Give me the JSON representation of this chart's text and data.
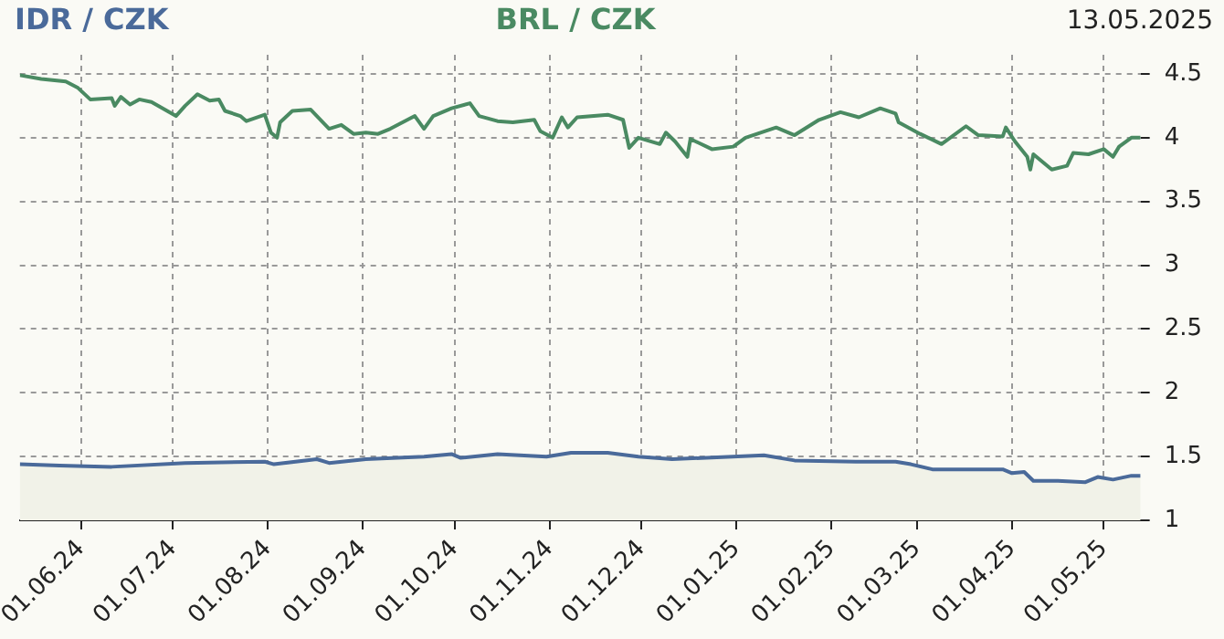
{
  "chart_data": {
    "type": "line",
    "annotations": [
      "13.05.2025"
    ],
    "xlim": [
      "2024-05-12",
      "2025-05-13"
    ],
    "xticks": [
      {
        "value": "2024-06-01",
        "label": "01.06.24"
      },
      {
        "value": "2024-07-01",
        "label": "01.07.24"
      },
      {
        "value": "2024-08-01",
        "label": "01.08.24"
      },
      {
        "value": "2024-09-01",
        "label": "01.09.24"
      },
      {
        "value": "2024-10-01",
        "label": "01.10.24"
      },
      {
        "value": "2024-11-01",
        "label": "01.11.24"
      },
      {
        "value": "2024-12-01",
        "label": "01.12.24"
      },
      {
        "value": "2025-01-01",
        "label": "01.01.25"
      },
      {
        "value": "2025-02-01",
        "label": "01.02.25"
      },
      {
        "value": "2025-03-01",
        "label": "01.03.25"
      },
      {
        "value": "2025-04-01",
        "label": "01.04.25"
      },
      {
        "value": "2025-05-01",
        "label": "01.05.25"
      }
    ],
    "ylim": [
      1,
      4.65
    ],
    "yticks": [
      1,
      1.5,
      2,
      2.5,
      3,
      3.5,
      4,
      4.5
    ],
    "grid": true,
    "series": [
      {
        "name": "IDR / CZK",
        "type": "area",
        "color": "#4a6a9a",
        "x": [
          "2024-05-12",
          "2024-05-25",
          "2024-06-11",
          "2024-07-05",
          "2024-07-31",
          "2024-08-03",
          "2024-08-17",
          "2024-08-21",
          "2024-09-02",
          "2024-09-21",
          "2024-09-30",
          "2024-10-03",
          "2024-10-15",
          "2024-10-31",
          "2024-11-08",
          "2024-11-20",
          "2024-11-30",
          "2024-12-11",
          "2025-01-10",
          "2025-01-20",
          "2025-02-09",
          "2025-02-22",
          "2025-02-27",
          "2025-03-06",
          "2025-03-29",
          "2025-04-01",
          "2025-04-05",
          "2025-04-08",
          "2025-04-16",
          "2025-04-25",
          "2025-04-29",
          "2025-05-04",
          "2025-05-10",
          "2025-05-13"
        ],
        "values": [
          1.44,
          1.43,
          1.42,
          1.45,
          1.46,
          1.44,
          1.48,
          1.45,
          1.48,
          1.5,
          1.52,
          1.49,
          1.52,
          1.5,
          1.53,
          1.53,
          1.5,
          1.48,
          1.51,
          1.47,
          1.46,
          1.46,
          1.44,
          1.4,
          1.4,
          1.37,
          1.38,
          1.31,
          1.31,
          1.3,
          1.34,
          1.32,
          1.35,
          1.35
        ]
      },
      {
        "name": "BRL / CZK",
        "type": "line",
        "color": "#4a8a62",
        "x": [
          "2024-05-12",
          "2024-05-19",
          "2024-05-27",
          "2024-05-31",
          "2024-06-04",
          "2024-06-11",
          "2024-06-12",
          "2024-06-14",
          "2024-06-17",
          "2024-06-20",
          "2024-06-24",
          "2024-07-02",
          "2024-07-05",
          "2024-07-09",
          "2024-07-13",
          "2024-07-16",
          "2024-07-18",
          "2024-07-23",
          "2024-07-25",
          "2024-07-31",
          "2024-08-02",
          "2024-08-04",
          "2024-08-05",
          "2024-08-09",
          "2024-08-15",
          "2024-08-21",
          "2024-08-25",
          "2024-08-29",
          "2024-09-02",
          "2024-09-06",
          "2024-09-10",
          "2024-09-18",
          "2024-09-21",
          "2024-09-24",
          "2024-09-30",
          "2024-10-06",
          "2024-10-09",
          "2024-10-15",
          "2024-10-20",
          "2024-10-27",
          "2024-10-29",
          "2024-11-02",
          "2024-11-05",
          "2024-11-07",
          "2024-11-10",
          "2024-11-20",
          "2024-11-25",
          "2024-11-27",
          "2024-11-30",
          "2024-12-07",
          "2024-12-09",
          "2024-12-12",
          "2024-12-16",
          "2024-12-17",
          "2024-12-24",
          "2024-12-31",
          "2025-01-04",
          "2025-01-14",
          "2025-01-20",
          "2025-01-28",
          "2025-02-04",
          "2025-02-10",
          "2025-02-17",
          "2025-02-22",
          "2025-02-23",
          "2025-03-02",
          "2025-03-09",
          "2025-03-17",
          "2025-03-21",
          "2025-03-29",
          "2025-03-30",
          "2025-04-02",
          "2025-04-06",
          "2025-04-07",
          "2025-04-08",
          "2025-04-14",
          "2025-04-19",
          "2025-04-21",
          "2025-04-26",
          "2025-05-01",
          "2025-05-04",
          "2025-05-06",
          "2025-05-10",
          "2025-05-13"
        ],
        "values": [
          4.49,
          4.46,
          4.44,
          4.39,
          4.3,
          4.31,
          4.25,
          4.32,
          4.26,
          4.3,
          4.28,
          4.17,
          4.25,
          4.34,
          4.29,
          4.3,
          4.21,
          4.17,
          4.13,
          4.18,
          4.04,
          4.0,
          4.12,
          4.21,
          4.22,
          4.07,
          4.1,
          4.03,
          4.04,
          4.03,
          4.07,
          4.17,
          4.07,
          4.17,
          4.23,
          4.27,
          4.17,
          4.13,
          4.12,
          4.14,
          4.05,
          4.0,
          4.16,
          4.08,
          4.16,
          4.18,
          4.14,
          3.92,
          4.0,
          3.95,
          4.04,
          3.97,
          3.85,
          3.99,
          3.91,
          3.93,
          4.0,
          4.08,
          4.02,
          4.14,
          4.2,
          4.16,
          4.23,
          4.19,
          4.12,
          4.03,
          3.95,
          4.09,
          4.02,
          4.01,
          4.08,
          3.97,
          3.85,
          3.75,
          3.87,
          3.75,
          3.78,
          3.88,
          3.87,
          3.91,
          3.85,
          3.93,
          4.0,
          4.0
        ]
      }
    ]
  }
}
